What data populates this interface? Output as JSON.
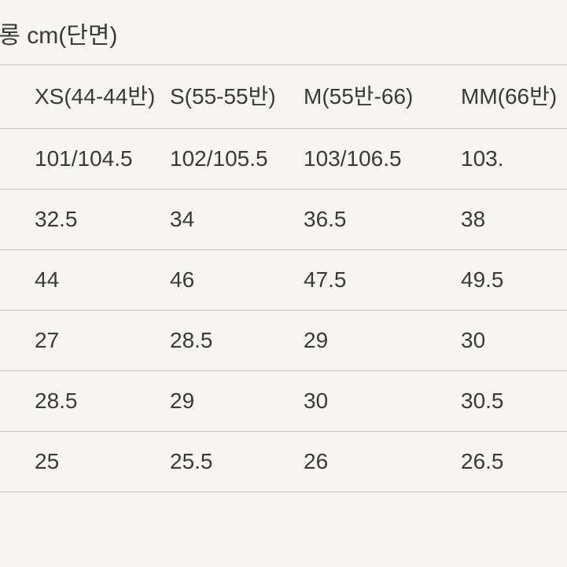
{
  "table": {
    "title": "/롱 cm(단면)",
    "headers": [
      "XS(44-44반)",
      "S(55-55반)",
      "M(55반-66)",
      "MM(66반)"
    ],
    "rows": [
      [
        "101/104.5",
        "102/105.5",
        "103/106.5",
        "103."
      ],
      [
        "32.5",
        "34",
        "36.5",
        "38"
      ],
      [
        "44",
        "46",
        "47.5",
        "49.5"
      ],
      [
        "27",
        "28.5",
        "29",
        "30"
      ],
      [
        "28.5",
        "29",
        "30",
        "30.5"
      ],
      [
        "25",
        "25.5",
        "26",
        "26.5"
      ]
    ],
    "background_color": "#f7f5f1",
    "text_color": "#3a3a3a",
    "border_color": "#c8c5be",
    "title_fontsize": 30,
    "cell_fontsize": 28
  }
}
